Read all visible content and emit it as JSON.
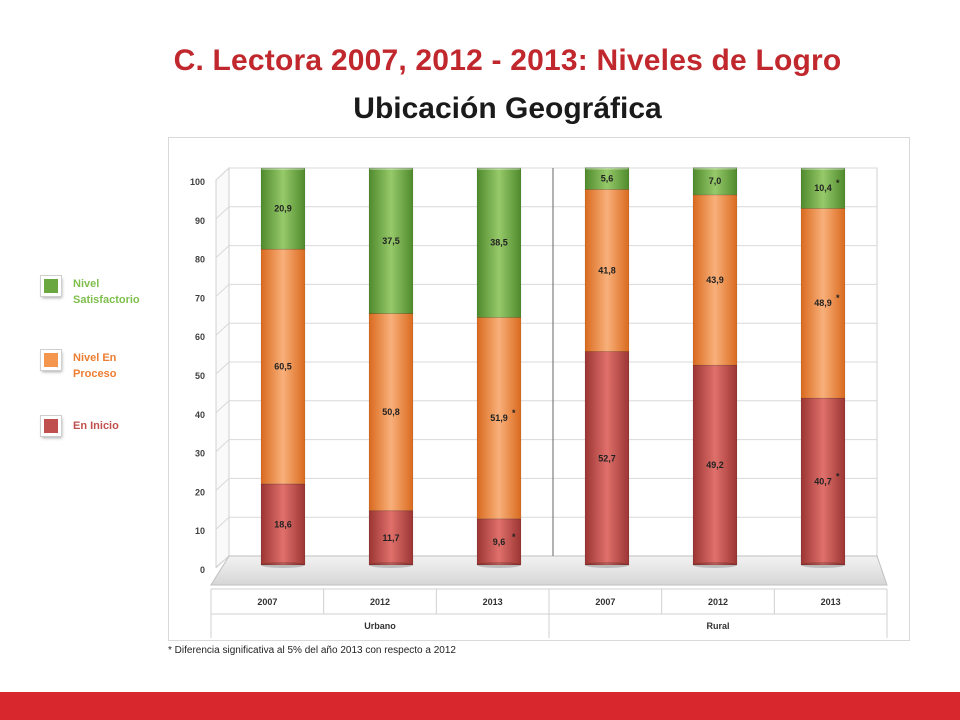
{
  "title_line1": "C. Lectora 2007, 2012 - 2013: Niveles de Logro",
  "title_line2": "Ubicación Geográfica",
  "legend": [
    {
      "label": "Nivel Satisfactorio",
      "color": "#6aa83f",
      "text_color": "#7fbf4d"
    },
    {
      "label": "Nivel En Proceso",
      "color": "#f5964f",
      "text_color": "#ed7d31"
    },
    {
      "label": "En Inicio",
      "color": "#c0504d",
      "text_color": "#c0504d"
    }
  ],
  "footnote": "* Diferencia significativa al 5% del año 2013 con respecto a 2012",
  "colors": {
    "en_inicio": "#c0504d",
    "en_proceso": "#f08a3c",
    "satisfactorio": "#6aa83f",
    "accent_bar": "#d8272d"
  },
  "chart_data": {
    "type": "bar",
    "stacked": true,
    "groups": [
      "Urbano",
      "Rural"
    ],
    "categories": [
      "2007",
      "2012",
      "2013",
      "2007",
      "2012",
      "2013"
    ],
    "category_group": [
      "Urbano",
      "Urbano",
      "Urbano",
      "Rural",
      "Rural",
      "Rural"
    ],
    "series": [
      {
        "name": "En Inicio",
        "values": [
          18.6,
          11.7,
          9.6,
          52.7,
          49.2,
          40.7
        ],
        "labels": [
          "18,6",
          "11,7",
          "9,6",
          "52,7",
          "49,2",
          "40,7"
        ],
        "significant": [
          false,
          false,
          true,
          false,
          false,
          true
        ]
      },
      {
        "name": "Nivel En Proceso",
        "values": [
          60.5,
          50.8,
          51.9,
          41.8,
          43.9,
          48.9
        ],
        "labels": [
          "60,5",
          "50,8",
          "51,9",
          "41,8",
          "43,9",
          "48,9"
        ],
        "significant": [
          false,
          false,
          true,
          false,
          false,
          true
        ]
      },
      {
        "name": "Nivel Satisfactorio",
        "values": [
          20.9,
          37.5,
          38.5,
          5.6,
          7.0,
          10.4
        ],
        "labels": [
          "20,9",
          "37,5",
          "38,5",
          "5,6",
          "7,0",
          "10,4"
        ],
        "significant": [
          false,
          false,
          false,
          false,
          false,
          true
        ]
      }
    ],
    "yticks": [
      "0",
      "10",
      "20",
      "30",
      "40",
      "50",
      "60",
      "70",
      "80",
      "90",
      "100"
    ],
    "ylim": [
      0,
      100
    ],
    "grid": true,
    "significance_marker": "*"
  }
}
